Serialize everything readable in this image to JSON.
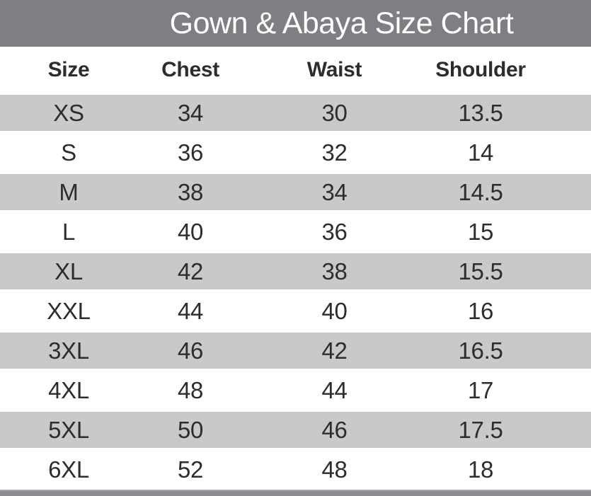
{
  "title": "Gown & Abaya Size Chart",
  "chart_data": {
    "type": "table",
    "title": "Gown & Abaya Size Chart",
    "columns": [
      "Size",
      "Chest",
      "Waist",
      "Shoulder"
    ],
    "rows": [
      [
        "XS",
        "34",
        "30",
        "13.5"
      ],
      [
        "S",
        "36",
        "32",
        "14"
      ],
      [
        "M",
        "38",
        "34",
        "14.5"
      ],
      [
        "L",
        "40",
        "36",
        "15"
      ],
      [
        "XL",
        "42",
        "38",
        "15.5"
      ],
      [
        "XXL",
        "44",
        "40",
        "16"
      ],
      [
        "3XL",
        "46",
        "42",
        "16.5"
      ],
      [
        "4XL",
        "48",
        "44",
        "17"
      ],
      [
        "5XL",
        "50",
        "46",
        "17.5"
      ],
      [
        "6XL",
        "52",
        "48",
        "18"
      ]
    ],
    "layout_hints": {
      "row_striping": "odd data rows (XS, M, XL, 3XL, 5XL) have light gray background",
      "header_band": "gray title bar on top, gray thin bar at bottom"
    }
  },
  "colors": {
    "header_bg": "#7d7f82",
    "stripe_bg": "#c8c9cb",
    "row_bg": "#ffffff",
    "text": "#2d2d2f",
    "title_text": "#ffffff",
    "footer_bar": "#8b8d90"
  }
}
